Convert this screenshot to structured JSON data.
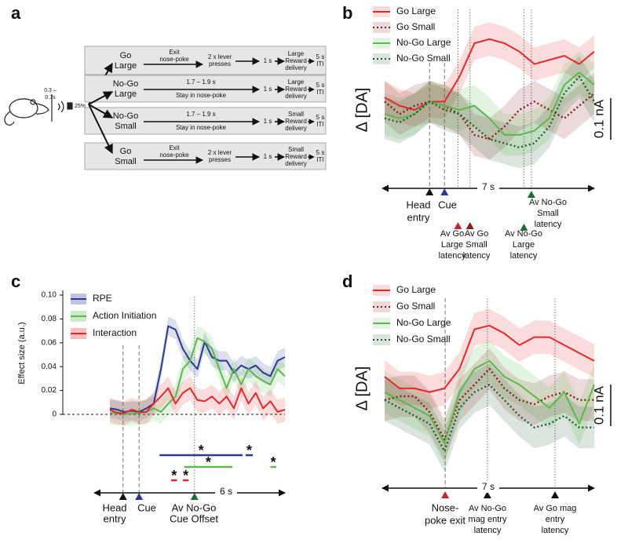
{
  "panel_labels": [
    "a",
    "b",
    "c",
    "d"
  ],
  "diagram": {
    "timing": [
      "0.3 –",
      "0.7s"
    ],
    "probability": "25%",
    "rows": [
      {
        "trial": [
          "Go",
          "Large"
        ],
        "action": [
          "Exit",
          "nose-poke"
        ],
        "response": [
          "2 x lever",
          "presses"
        ],
        "delay": "1 s",
        "outcome": [
          "Large",
          "Reward",
          "delivery"
        ],
        "iti": [
          "5 s",
          "ITI"
        ]
      },
      {
        "trial": [
          "No-Go",
          "Large"
        ],
        "action": [
          "1.7 – 1.9 s",
          "Stay in nose-poke"
        ],
        "delay": "1 s",
        "outcome": [
          "Large",
          "Reward",
          "delivery"
        ],
        "iti": [
          "5 s",
          "ITI"
        ]
      },
      {
        "trial": [
          "No-Go",
          "Small"
        ],
        "action": [
          "1.7 – 1.9 s",
          "Stay in nose-poke"
        ],
        "delay": "1 s",
        "outcome": [
          "Small",
          "Reward",
          "delivery"
        ],
        "iti": [
          "5 s",
          "ITI"
        ]
      },
      {
        "trial": [
          "Go",
          "Small"
        ],
        "action": [
          "Exit",
          "nose-poke"
        ],
        "response": [
          "2 x lever",
          "presses"
        ],
        "delay": "1 s",
        "outcome": [
          "Small",
          "Reward",
          "delivery"
        ],
        "iti": [
          "5 s",
          "ITI"
        ]
      }
    ]
  },
  "chart_data": [
    {
      "type": "line",
      "ylabel": "Δ [DA]",
      "scale_bar": {
        "value": 0.1,
        "label": "0.1 nA"
      },
      "time_label": "7 s",
      "legend_marker": "line",
      "x": [
        0,
        0.5,
        1,
        1.5,
        2,
        2.5,
        3,
        3.5,
        4,
        4.5,
        5,
        5.5,
        6,
        6.5,
        7
      ],
      "xlim": [
        0,
        7
      ],
      "ylim": [
        -0.16,
        0.245
      ],
      "series": [
        {
          "name": "Go Large",
          "color": "#e8262b",
          "style": "solid",
          "error": 0.04,
          "values": [
            0.03,
            0.01,
            0,
            0.02,
            0.02,
            0.08,
            0.16,
            0.17,
            0.16,
            0.14,
            0.11,
            0.12,
            0.13,
            0.11,
            0.14
          ]
        },
        {
          "name": "Go Small",
          "color": "#8b1a1a",
          "style": "dotted",
          "error": 0.05,
          "values": [
            0.02,
            -0.01,
            0.01,
            0.02,
            0.01,
            -0.01,
            -0.06,
            -0.07,
            -0.04,
            0,
            0.02,
            0,
            -0.02,
            0.01,
            0.04
          ]
        },
        {
          "name": "No-Go Large",
          "color": "#5ab94a",
          "style": "solid",
          "error": 0.05,
          "values": [
            -0.01,
            -0.02,
            -0.01,
            0.02,
            0.01,
            0,
            0.01,
            -0.02,
            -0.06,
            -0.06,
            -0.05,
            -0.02,
            0.06,
            0.09,
            0.06
          ]
        },
        {
          "name": "No-Go Small",
          "color": "#1e5e2e",
          "style": "dotted",
          "error": 0.05,
          "values": [
            -0.02,
            -0.03,
            -0.01,
            0.02,
            0,
            -0.01,
            -0.04,
            -0.07,
            -0.08,
            -0.09,
            -0.08,
            -0.04,
            0.04,
            0.08,
            0.02
          ]
        }
      ],
      "events": [
        {
          "x": 1.5,
          "label": [
            "Head",
            "entry"
          ],
          "color": "#111111",
          "style": "dashed"
        },
        {
          "x": 2.0,
          "label": [
            "Cue"
          ],
          "color": "#2b3990",
          "style": "dashed"
        },
        {
          "x": 2.45,
          "label": [
            "Av Go",
            "Large",
            "latency"
          ],
          "color": "#c1272d",
          "style": "dotted"
        },
        {
          "x": 2.85,
          "label": [
            "Av Go",
            "Small",
            "latency"
          ],
          "color": "#8b1a1a",
          "style": "dotted"
        },
        {
          "x": 4.65,
          "label": [
            "Av No-Go",
            "Large",
            "latency"
          ],
          "color": "#1e6b34",
          "style": "dotted"
        },
        {
          "x": 4.9,
          "label": [
            "Av No-Go",
            "Small",
            "latency"
          ],
          "color": "#1e6b34",
          "style": "dotted"
        }
      ]
    },
    {
      "type": "line",
      "ylabel": "Effect size (a.u.)",
      "time_label": "6 s",
      "legend_marker": "patch",
      "zero_line": true,
      "x": [
        0,
        0.25,
        0.5,
        0.75,
        1,
        1.25,
        1.5,
        1.75,
        2,
        2.25,
        2.5,
        2.75,
        3,
        3.25,
        3.5,
        3.75,
        4,
        4.25,
        4.5,
        4.75,
        5,
        5.25,
        5.5,
        5.75,
        6
      ],
      "xlim": [
        0,
        6
      ],
      "ylim": [
        0,
        0.1
      ],
      "yticks": [
        0,
        0.02,
        0.04,
        0.06,
        0.08,
        {
          "value": 0.1,
          "label": "0.10"
        }
      ],
      "series": [
        {
          "name": "RPE",
          "color": "#2b3990",
          "style": "solid",
          "error": 0.008,
          "values": [
            0.005,
            0.004,
            0.002,
            0.003,
            0.002,
            0.005,
            0.009,
            0.038,
            0.074,
            0.071,
            0.055,
            0.045,
            0.038,
            0.061,
            0.048,
            0.045,
            0.045,
            0.035,
            0.041,
            0.038,
            0.041,
            0.035,
            0.032,
            0.045,
            0.048
          ]
        },
        {
          "name": "Action Initiation",
          "color": "#5ab94a",
          "style": "solid",
          "error": 0.01,
          "values": [
            0.001,
            0.002,
            0,
            0.001,
            0.001,
            0.002,
            0.005,
            0.002,
            0.009,
            0.015,
            0.038,
            0.045,
            0.064,
            0.061,
            0.055,
            0.038,
            0.022,
            0.038,
            0.025,
            0.038,
            0.032,
            0.028,
            0.025,
            0.038,
            0.032
          ]
        },
        {
          "name": "Interaction",
          "color": "#e8262b",
          "style": "solid",
          "error": 0.01,
          "values": [
            0.004,
            0.001,
            0.001,
            0.004,
            0.002,
            0.002,
            0.009,
            0.015,
            0.022,
            0.009,
            0.018,
            0.022,
            0.012,
            0.011,
            0.015,
            0.009,
            0.015,
            0.005,
            0.022,
            0.009,
            0.018,
            0.005,
            0.011,
            0.002,
            0.004
          ]
        }
      ],
      "significance": [
        {
          "color": "#2b3990",
          "marker": "*",
          "intervals": [
            [
              1.7,
              4.55
            ],
            [
              4.65,
              4.9
            ]
          ]
        },
        {
          "color": "#5ab94a",
          "marker": "*",
          "intervals": [
            [
              2.55,
              4.2
            ],
            [
              5.5,
              5.7
            ]
          ]
        },
        {
          "color": "#e8262b",
          "marker": "*",
          "intervals": [
            [
              2.1,
              2.3
            ],
            [
              2.5,
              2.7
            ]
          ]
        }
      ],
      "events": [
        {
          "x": 0.45,
          "label": [
            "Head",
            "entry"
          ],
          "color": "#111111",
          "style": "dashed"
        },
        {
          "x": 1.0,
          "label": [
            "Cue"
          ],
          "color": "#2b3990",
          "style": "dashed"
        },
        {
          "x": 2.9,
          "label": [
            "Av No-Go",
            "Cue Offset"
          ],
          "color": "#1e6b34",
          "style": "dotted"
        }
      ]
    },
    {
      "type": "line",
      "ylabel": "Δ [DA]",
      "scale_bar": {
        "value": 0.1,
        "label": "0.1 nA"
      },
      "time_label": "7 s",
      "legend_marker": "line",
      "x": [
        0,
        0.5,
        1,
        1.5,
        2,
        2.5,
        3,
        3.5,
        4,
        4.5,
        5,
        5.5,
        6,
        6.5,
        7
      ],
      "xlim": [
        0,
        7
      ],
      "ylim": [
        -0.236,
        0.245
      ],
      "series": [
        {
          "name": "Go Large",
          "color": "#e8262b",
          "style": "solid",
          "error": 0.04,
          "values": [
            0.028,
            0,
            0,
            -0.009,
            0,
            0.047,
            0.142,
            0.151,
            0.132,
            0.104,
            0.123,
            0.123,
            0.104,
            0.085,
            0.066
          ]
        },
        {
          "name": "Go Small",
          "color": "#8b1a1a",
          "style": "dotted",
          "error": 0.05,
          "values": [
            -0.028,
            -0.019,
            -0.019,
            -0.057,
            -0.123,
            -0.028,
            0.009,
            0.047,
            0,
            -0.028,
            -0.038,
            -0.019,
            -0.009,
            -0.028,
            -0.028
          ]
        },
        {
          "name": "No-Go Large",
          "color": "#5ab94a",
          "style": "solid",
          "error": 0.05,
          "values": [
            -0.009,
            -0.028,
            -0.047,
            -0.066,
            -0.132,
            -0.009,
            0.047,
            0.066,
            0.028,
            0.009,
            -0.019,
            -0.047,
            -0.009,
            -0.085,
            0.009
          ]
        },
        {
          "name": "No-Go Small",
          "color": "#1e5e2e",
          "style": "dotted",
          "error": 0.05,
          "values": [
            -0.028,
            -0.047,
            -0.066,
            -0.085,
            -0.151,
            -0.047,
            -0.009,
            0.009,
            -0.028,
            -0.066,
            -0.094,
            -0.085,
            -0.066,
            -0.094,
            -0.094
          ]
        }
      ],
      "events": [
        {
          "x": 2.02,
          "label": [
            "Nose-",
            "poke exit"
          ],
          "color": "#c1272d",
          "style": "dashed"
        },
        {
          "x": 3.43,
          "label": [
            "Av No-Go",
            "mag entry",
            "latency"
          ],
          "color": "#111111",
          "style": "dotted"
        },
        {
          "x": 5.69,
          "label": [
            "Av Go mag",
            "entry",
            "latency"
          ],
          "color": "#111111",
          "style": "dotted"
        }
      ]
    }
  ]
}
